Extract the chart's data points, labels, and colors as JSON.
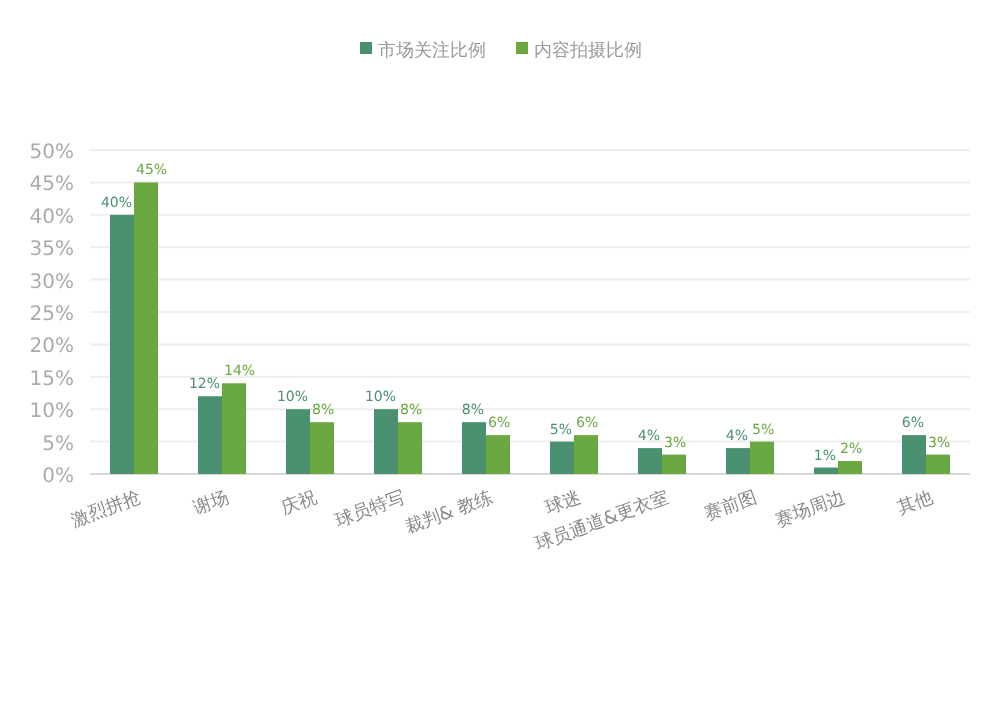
{
  "chart_data": {
    "type": "bar",
    "categories": [
      "激烈拼抢",
      "谢场",
      "庆祝",
      "球员特写",
      "裁判& 教练",
      "球迷",
      "球员通道&更衣室",
      "赛前图",
      "赛场周边",
      "其他"
    ],
    "series": [
      {
        "name": "市场关注比例",
        "color": "#4a9170",
        "values": [
          40,
          12,
          10,
          10,
          8,
          5,
          4,
          4,
          1,
          6
        ],
        "value_labels": [
          "40%",
          "12%",
          "10%",
          "10%",
          "8%",
          "5%",
          "4%",
          "4%",
          "1%",
          "6%"
        ]
      },
      {
        "name": "内容拍摄比例",
        "color": "#6aa842",
        "values": [
          45,
          14,
          8,
          8,
          6,
          6,
          3,
          5,
          2,
          3
        ],
        "value_labels": [
          "45%",
          "14%",
          "8%",
          "8%",
          "6%",
          "6%",
          "3%",
          "5%",
          "2%",
          "3%"
        ]
      }
    ],
    "ylim": [
      0,
      50
    ],
    "yticks": [
      {
        "value": 0,
        "label": "0%"
      },
      {
        "value": 5,
        "label": "5%"
      },
      {
        "value": 10,
        "label": "10%"
      },
      {
        "value": 15,
        "label": "15%"
      },
      {
        "value": 20,
        "label": "20%"
      },
      {
        "value": 25,
        "label": "25%"
      },
      {
        "value": 30,
        "label": "30%"
      },
      {
        "value": 35,
        "label": "35%"
      },
      {
        "value": 40,
        "label": "40%"
      },
      {
        "value": 45,
        "label": "45%"
      },
      {
        "value": 50,
        "label": "50%"
      }
    ],
    "grid": "y",
    "legend": "top"
  }
}
